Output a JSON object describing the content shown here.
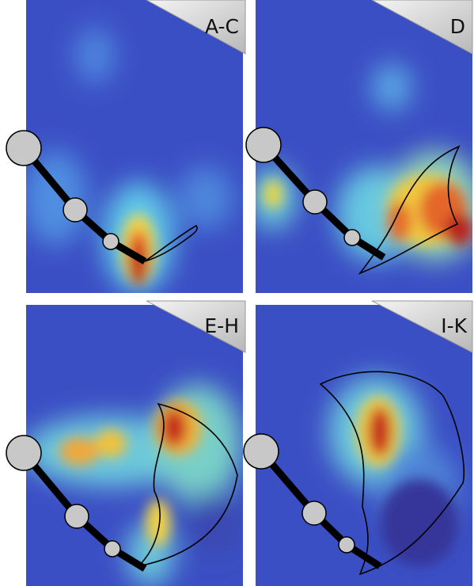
{
  "panels": [
    {
      "label": "A-C"
    },
    {
      "label": "D"
    },
    {
      "label": "E-H"
    },
    {
      "label": "I-K"
    }
  ]
}
